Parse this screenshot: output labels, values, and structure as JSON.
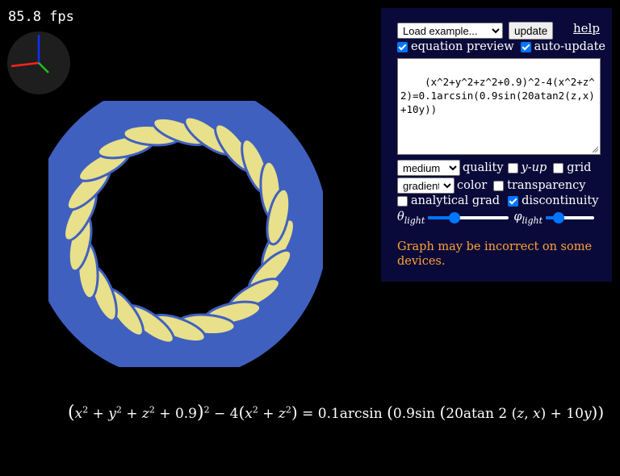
{
  "fps_text": "85.8 fps",
  "panel": {
    "example_select": "Load example...",
    "update_label": "update",
    "help_label": "help",
    "equation_preview": {
      "label": "equation preview",
      "checked": true
    },
    "auto_update": {
      "label": "auto-update",
      "checked": true
    },
    "equation_input": "(x^2+y^2+z^2+0.9)^2-4(x^2+z^2)=0.1arcsin(0.9sin(20atan2(z,x)+10y))",
    "quality_select": "medium",
    "quality_label": "quality",
    "y_up": {
      "label": "y-up",
      "checked": false
    },
    "grid": {
      "label": "grid",
      "checked": false
    },
    "color_select": "gradient",
    "color_label": "color",
    "transparency": {
      "label": "transparency",
      "checked": false
    },
    "analytical_grad": {
      "label": "analytical grad",
      "checked": false
    },
    "discontinuity": {
      "label": "discontinuity",
      "checked": true
    },
    "theta_label": "θ",
    "theta_sub": "light",
    "theta_value": 0.3,
    "phi_label": "φ",
    "phi_sub": "light",
    "phi_value": 0.2,
    "warning": "Graph may be incorrect on some devices."
  },
  "colors": {
    "panel_bg": "#0a0a3a",
    "accent": "#0075ff",
    "warning": "#ffa233",
    "surface_yellow": "#e8e08a",
    "surface_blue": "#4060c0"
  }
}
